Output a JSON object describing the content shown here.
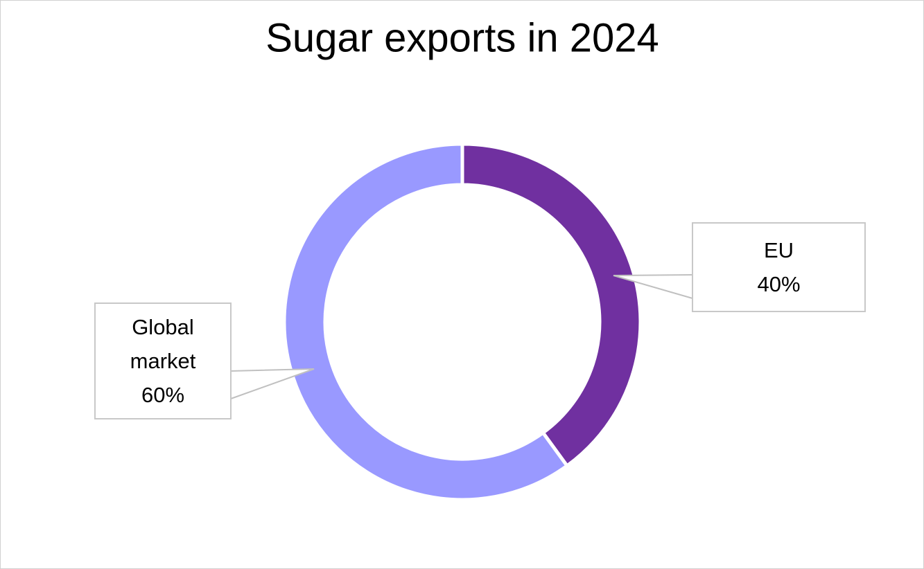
{
  "chart_data": {
    "type": "donut",
    "title": "Sugar exports in 2024",
    "categories": [
      "EU",
      "Global market"
    ],
    "values": [
      40,
      60
    ],
    "value_labels": [
      "40%",
      "60%"
    ],
    "colors": [
      "#7030a0",
      "#9999ff"
    ]
  }
}
